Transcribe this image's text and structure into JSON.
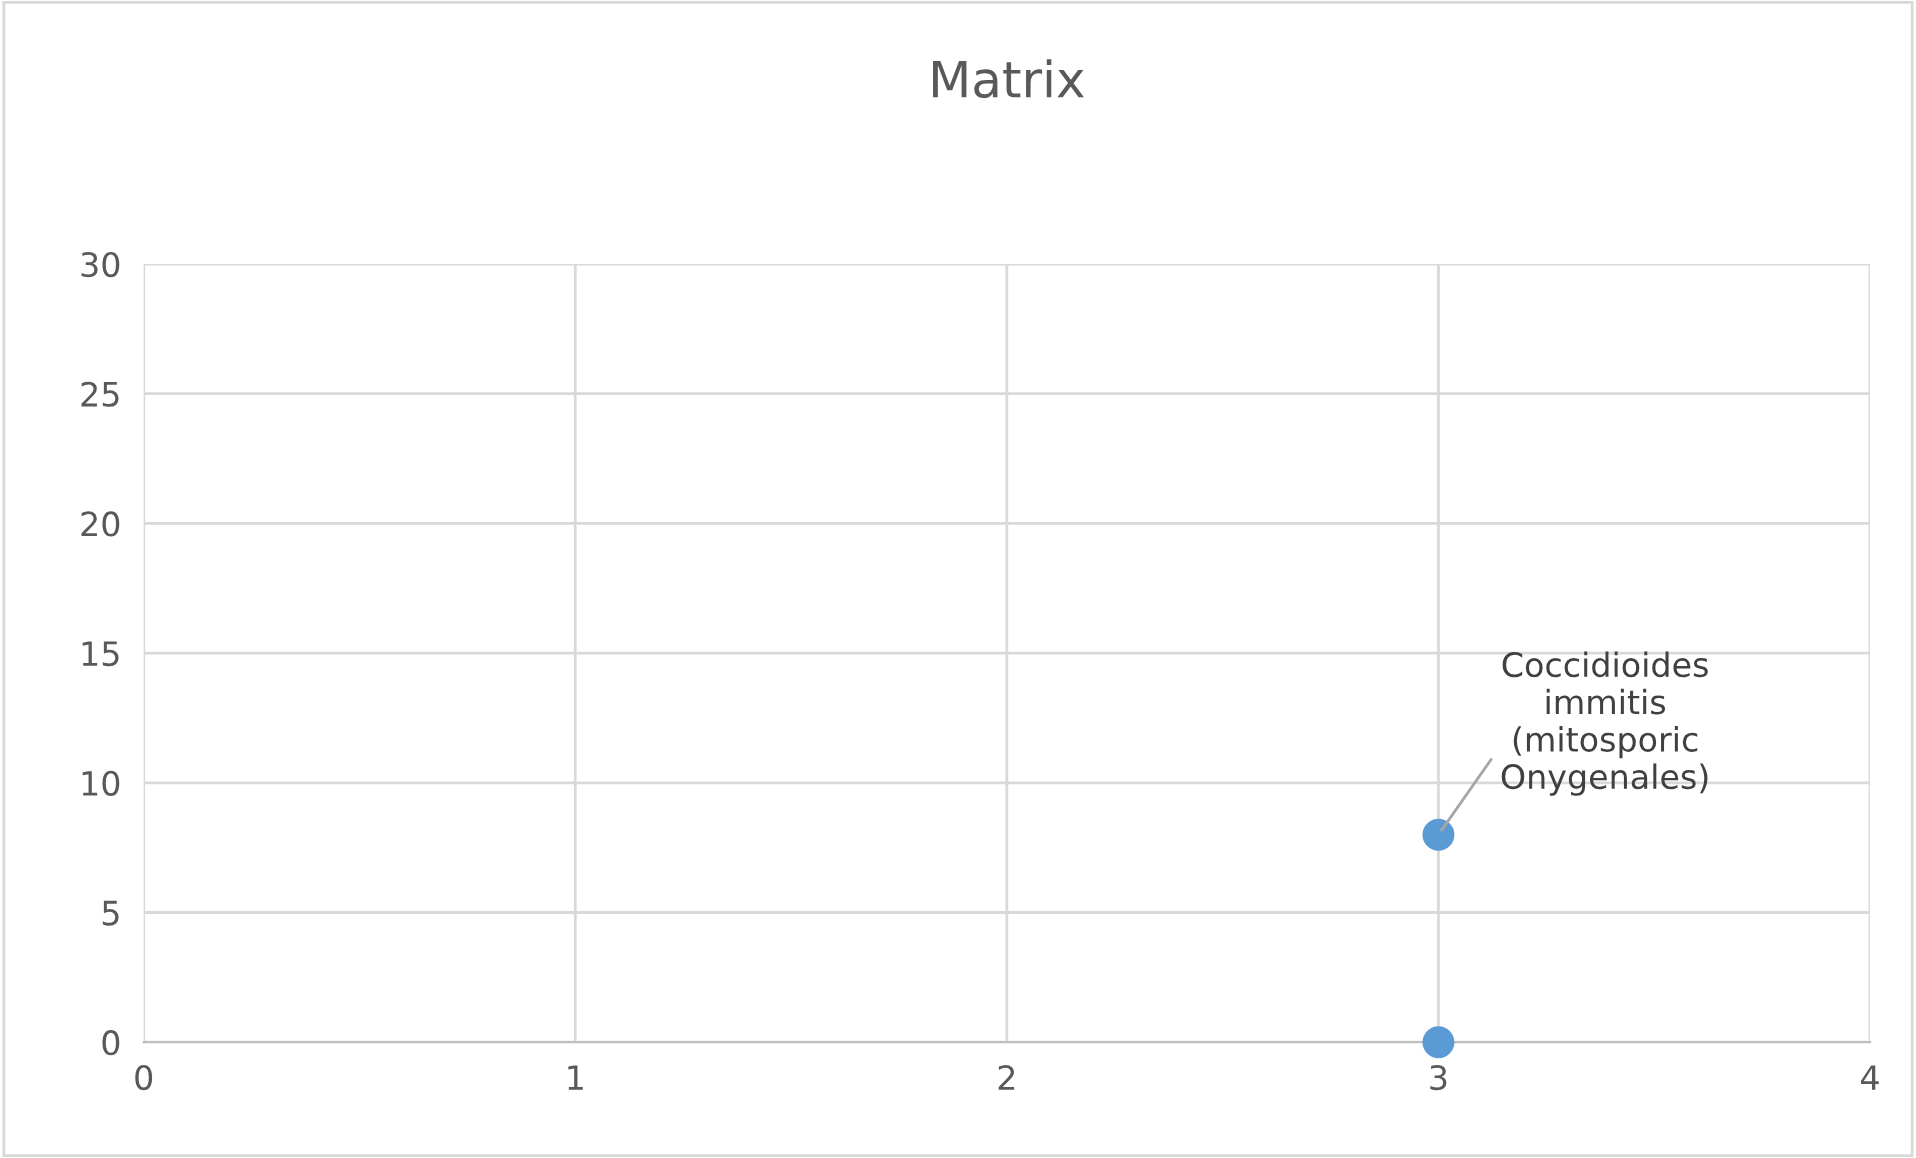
{
  "chart_data": {
    "type": "scatter",
    "title": "Matrix",
    "series": [
      {
        "color": "#5b9bd5",
        "x": [
          3,
          3
        ],
        "values": [
          8,
          0
        ]
      }
    ],
    "xlim": [
      0,
      4
    ],
    "xticks": [
      0,
      1,
      2,
      3,
      4
    ],
    "ylim": [
      0,
      30
    ],
    "yticks": [
      0,
      5,
      10,
      15,
      20,
      25,
      30
    ],
    "grid": true,
    "marker": "circle",
    "annotations": [
      {
        "text": "Coccidioides\nimmitis\n(mitosporic\nOnygenales)",
        "x": 3,
        "y": 8
      }
    ]
  }
}
